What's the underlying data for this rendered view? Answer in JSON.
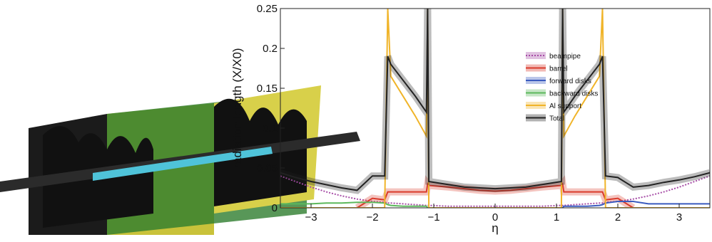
{
  "chart_data": {
    "type": "line",
    "xlabel": "η",
    "ylabel": "radiation length (X/X0)",
    "xlim": [
      -3.5,
      3.5
    ],
    "ylim": [
      0,
      0.25
    ],
    "xticks": [
      {
        "value": -3,
        "label": "−3"
      },
      {
        "value": -2,
        "label": "−2"
      },
      {
        "value": -1,
        "label": "−1"
      },
      0,
      1,
      2,
      3
    ],
    "yticks": [
      0,
      0.05,
      0.1,
      0.15,
      0.2,
      0.25
    ],
    "legend": "top-center",
    "x": [
      -3.5,
      -3.25,
      -3,
      -2.75,
      -2.5,
      -2.25,
      -2,
      -1.8,
      -1.75,
      -1.7,
      -1.5,
      -1.3,
      -1.12,
      -1.1,
      -1.08,
      -0.75,
      -0.5,
      -0.25,
      0,
      0.25,
      0.5,
      0.75,
      1.08,
      1.1,
      1.12,
      1.3,
      1.5,
      1.7,
      1.75,
      1.8,
      2,
      2.25,
      2.5,
      2.75,
      3,
      3.25,
      3.5
    ],
    "series": [
      {
        "name": "beampipe",
        "color": "#a64ca6",
        "dashed": true,
        "values": [
          0.04,
          0.033,
          0.026,
          0.02,
          0.015,
          0.011,
          0.008,
          0.007,
          0.006,
          0.006,
          0.005,
          0.004,
          0.003,
          0.003,
          0.003,
          0.002,
          0.002,
          0.002,
          0.002,
          0.002,
          0.002,
          0.002,
          0.003,
          0.003,
          0.003,
          0.004,
          0.005,
          0.006,
          0.006,
          0.007,
          0.008,
          0.011,
          0.015,
          0.02,
          0.026,
          0.033,
          0.04
        ]
      },
      {
        "name": "barrel",
        "color": "#d93a2b",
        "values": [
          null,
          null,
          null,
          null,
          null,
          0,
          0.012,
          0.01,
          0.02,
          0.02,
          0.02,
          0.02,
          0.02,
          0.03,
          0.028,
          0.026,
          0.024,
          0.022,
          0.021,
          0.022,
          0.024,
          0.026,
          0.028,
          0.03,
          0.02,
          0.02,
          0.02,
          0.02,
          0.02,
          0.01,
          0.012,
          0,
          null,
          null,
          null,
          null,
          null
        ]
      },
      {
        "name": "forward disks",
        "color": "#3a5bbf",
        "values": [
          null,
          null,
          null,
          null,
          null,
          null,
          null,
          null,
          null,
          null,
          null,
          null,
          null,
          null,
          null,
          null,
          null,
          null,
          null,
          null,
          null,
          null,
          null,
          0,
          0.002,
          0.002,
          0.002,
          0.003,
          0.004,
          0.006,
          0.008,
          0.008,
          0.005,
          0.005,
          0.005,
          0.005,
          0.005
        ]
      },
      {
        "name": "backward disks",
        "color": "#5cb85c",
        "values": [
          0.005,
          0.005,
          0.005,
          0.006,
          0.006,
          0.007,
          0.007,
          0.006,
          0.004,
          0.003,
          0.002,
          0.002,
          0.002,
          0,
          null,
          null,
          null,
          null,
          null,
          null,
          null,
          null,
          null,
          null,
          null,
          null,
          null,
          null,
          null,
          null,
          null,
          null,
          null,
          null,
          null,
          null,
          null
        ]
      },
      {
        "name": "Al support",
        "color": "#f0b429",
        "values": [
          0,
          0,
          0,
          0,
          0,
          0,
          0,
          0,
          0.25,
          0.165,
          0.14,
          0.115,
          0.09,
          0.25,
          0,
          0,
          0,
          0,
          0,
          0,
          0,
          0,
          0,
          0.25,
          0.09,
          0.115,
          0.14,
          0.165,
          0.25,
          0,
          0,
          0,
          0,
          0,
          0,
          0,
          0
        ]
      },
      {
        "name": "Total",
        "color": "#222222",
        "values": [
          0.044,
          0.038,
          0.033,
          0.029,
          0.025,
          0.022,
          0.04,
          0.04,
          0.19,
          0.18,
          0.16,
          0.14,
          0.12,
          0.25,
          0.033,
          0.029,
          0.026,
          0.025,
          0.024,
          0.025,
          0.026,
          0.029,
          0.033,
          0.25,
          0.12,
          0.14,
          0.16,
          0.18,
          0.19,
          0.04,
          0.038,
          0.026,
          0.028,
          0.032,
          0.035,
          0.039,
          0.044
        ]
      }
    ]
  }
}
